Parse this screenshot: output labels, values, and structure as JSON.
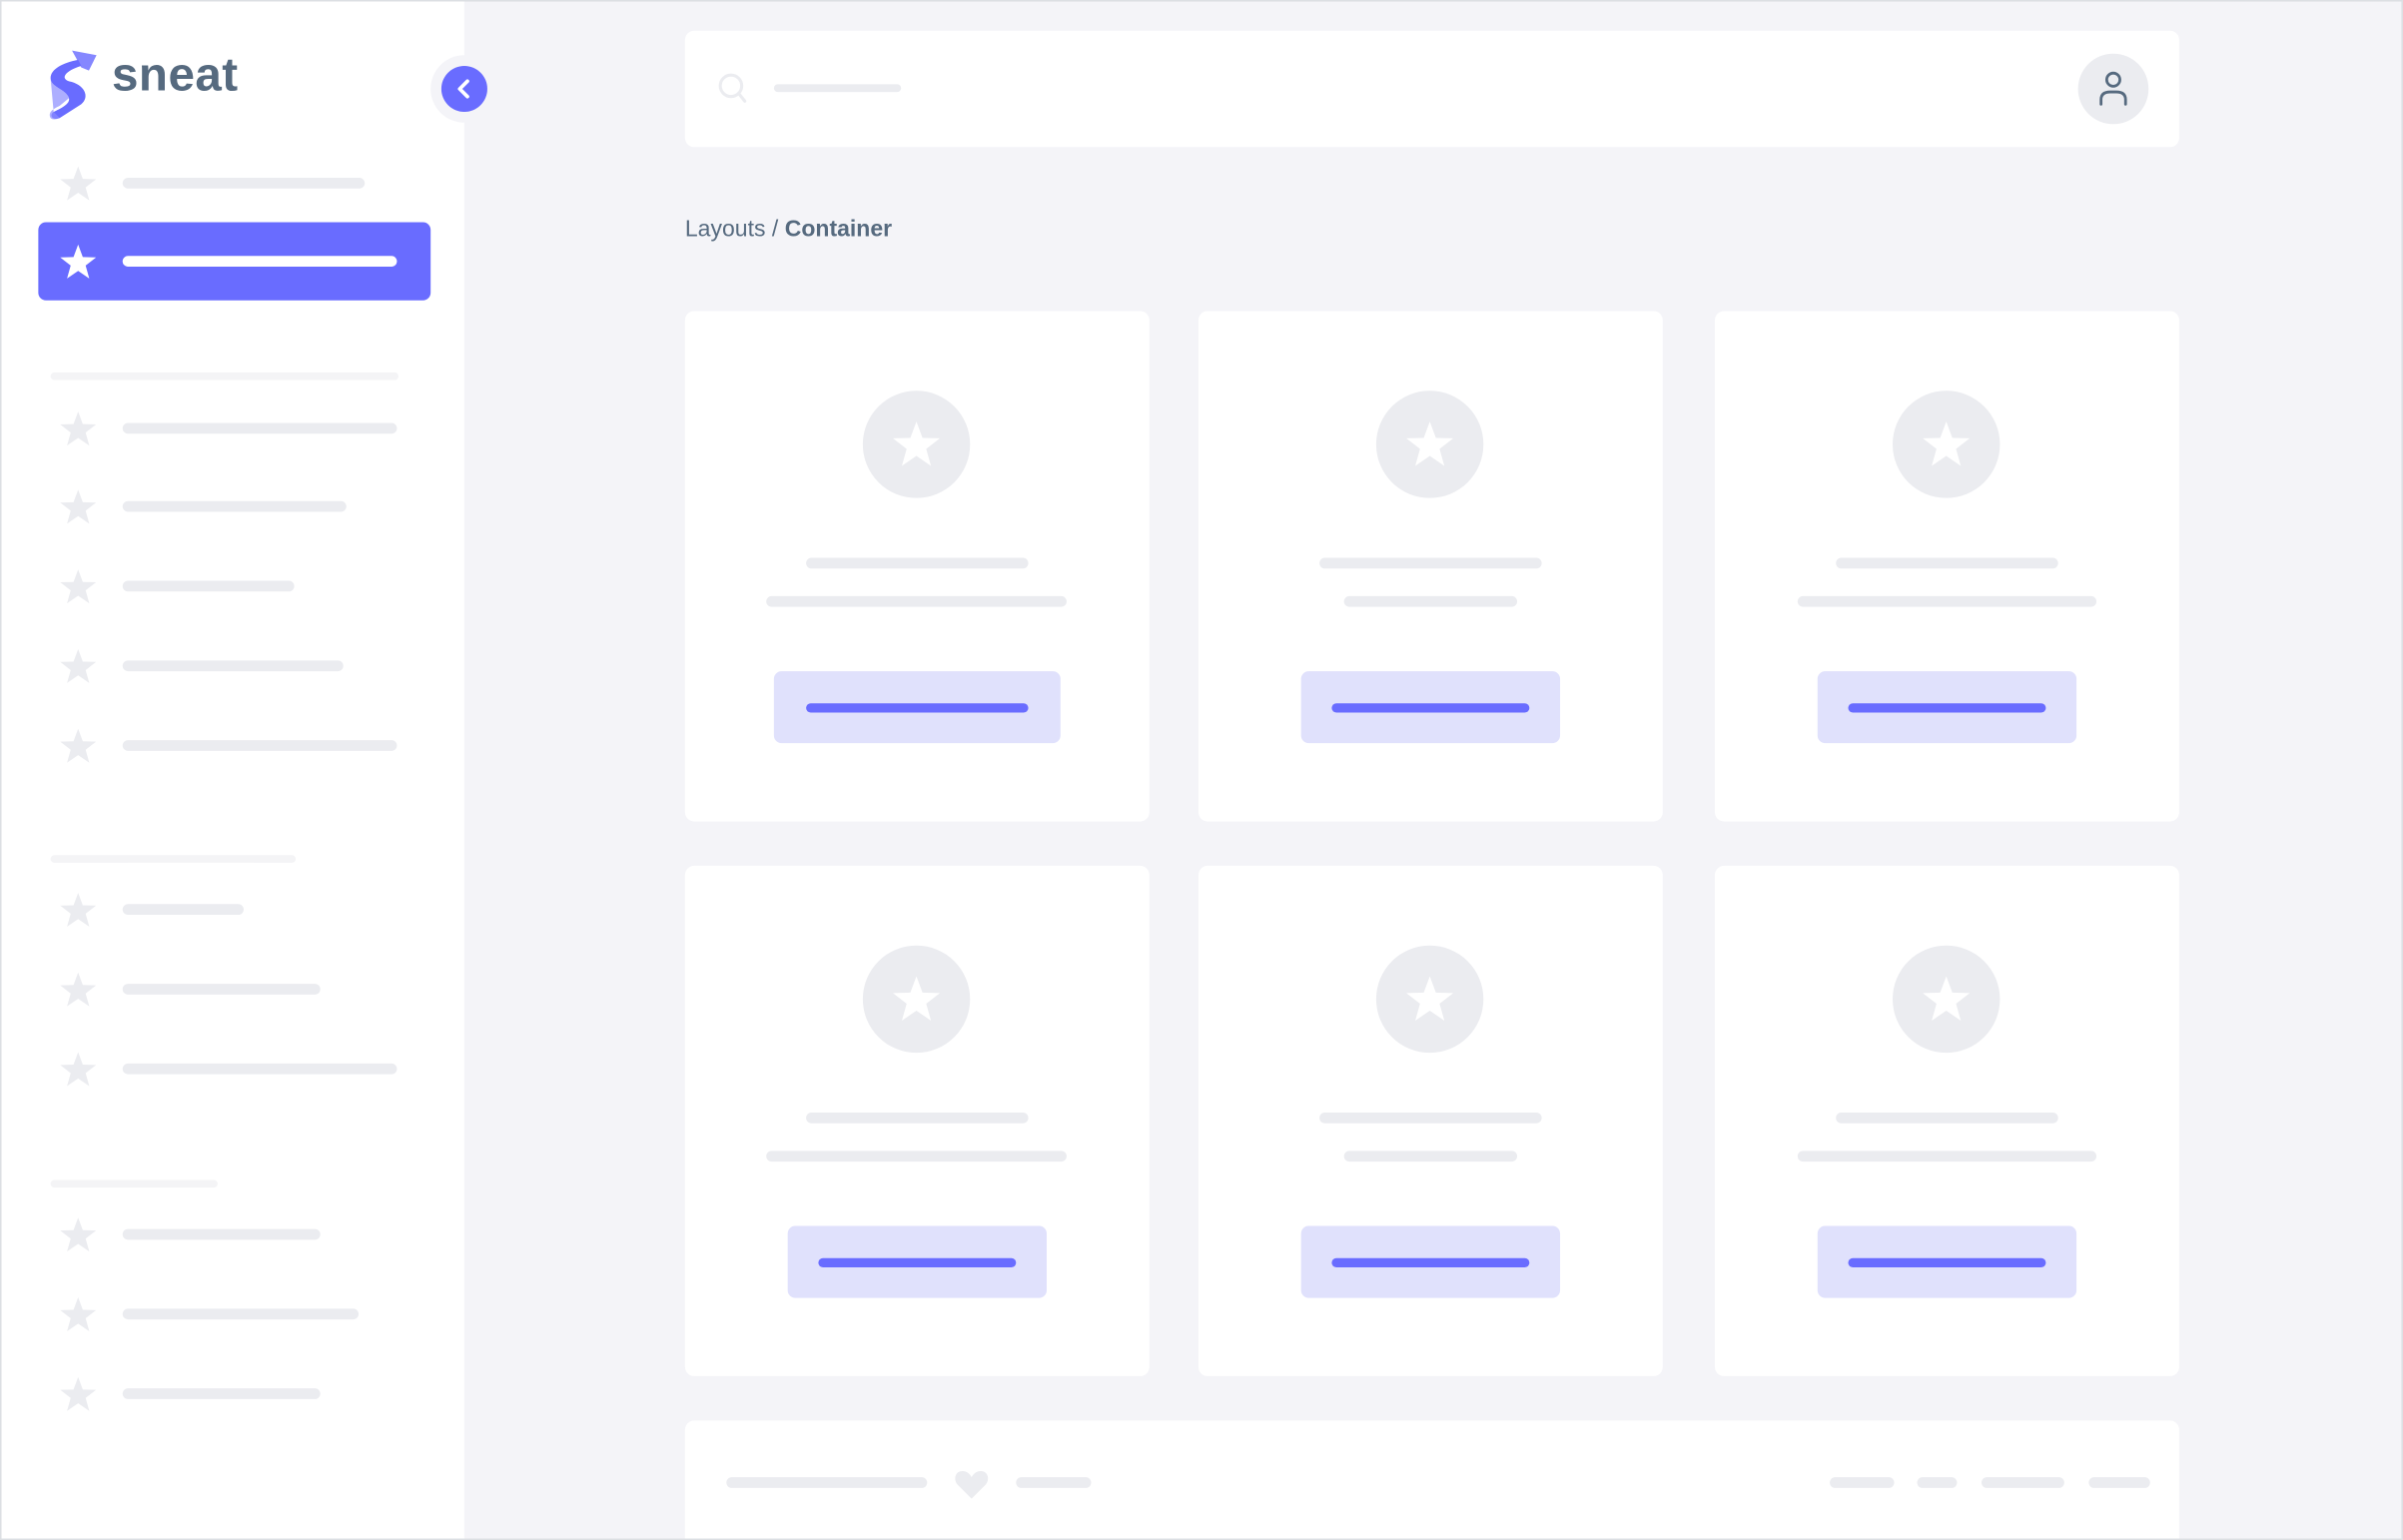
{
  "app": {
    "logo_text": "sneat",
    "logo_icon": "sneat-s-logo-icon"
  },
  "colors": {
    "primary": "#696cff",
    "primary_light": "#e0e1fc",
    "skeleton": "#ebecf0",
    "background": "#f4f4f8",
    "heading": "#566a7f"
  },
  "sidebar": {
    "toggle_icon": "chevron-left-icon",
    "item_icon": "star-icon",
    "active_index": 1
  },
  "navbar": {
    "search_icon": "search-icon",
    "avatar_icon": "user-icon"
  },
  "breadcrumb": {
    "parent": "Layouts",
    "separator": " / ",
    "current": "Container"
  },
  "footer": {
    "icon": "heart-icon"
  }
}
